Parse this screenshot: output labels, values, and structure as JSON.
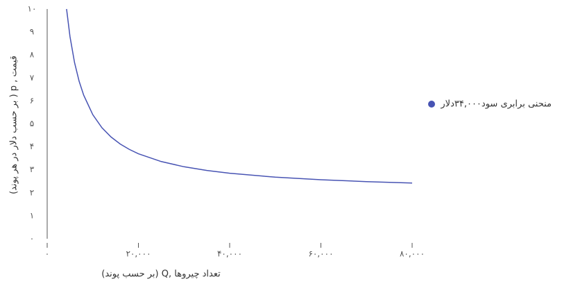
{
  "chart_data": {
    "type": "line",
    "x_label": "تعداد چیروها ,Q (بر حسب پوند)",
    "y_label": "قیمت , p ( بر حسب دلار در هر پوند)",
    "x": [
      4250,
      5000,
      6000,
      7000,
      8000,
      10000,
      12000,
      14000,
      16000,
      18000,
      20000,
      25000,
      30000,
      35000,
      40000,
      50000,
      60000,
      70000,
      80000
    ],
    "series": [
      {
        "name": "منحنی برابری سود۳۴,۰۰۰دلار",
        "color": "#4753b3",
        "values": [
          10,
          8.8,
          7.667,
          6.857,
          6.25,
          5.4,
          4.833,
          4.429,
          4.125,
          3.889,
          3.7,
          3.36,
          3.133,
          2.971,
          2.85,
          2.68,
          2.567,
          2.486,
          2.425
        ]
      }
    ],
    "xlim": [
      0,
      80000
    ],
    "ylim": [
      0,
      10
    ],
    "xticks": [
      {
        "value": 0,
        "label": "۰"
      },
      {
        "value": 20000,
        "label": "۲۰,۰۰۰"
      },
      {
        "value": 40000,
        "label": "۴۰,۰۰۰"
      },
      {
        "value": 60000,
        "label": "۶۰,۰۰۰"
      },
      {
        "value": 80000,
        "label": "۸۰,۰۰۰"
      }
    ],
    "yticks": [
      {
        "value": 0,
        "label": "۰"
      },
      {
        "value": 1,
        "label": "۱"
      },
      {
        "value": 2,
        "label": "۲"
      },
      {
        "value": 3,
        "label": "۳"
      },
      {
        "value": 4,
        "label": "۴"
      },
      {
        "value": 5,
        "label": "۵"
      },
      {
        "value": 6,
        "label": "۶"
      },
      {
        "value": 7,
        "label": "۷"
      },
      {
        "value": 8,
        "label": "۸"
      },
      {
        "value": 9,
        "label": "۹"
      },
      {
        "value": 10,
        "label": "۱۰"
      }
    ],
    "legend": "right"
  }
}
